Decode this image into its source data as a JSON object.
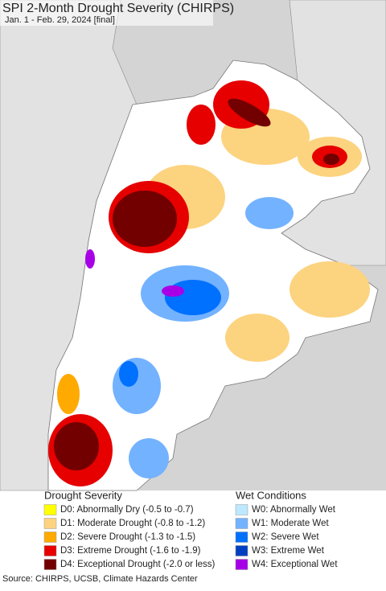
{
  "header": {
    "title": "SPI 2-Month Drought Severity (CHIRPS)",
    "subtitle": "Jan. 1 - Feb. 29, 2024 [final]"
  },
  "legend": {
    "drought": {
      "title": "Drought Severity",
      "items": [
        {
          "label": "D0: Abnormally Dry (-0.5 to -0.7)",
          "color": "#ffff00"
        },
        {
          "label": "D1: Moderate Drought (-0.8 to -1.2)",
          "color": "#fcd37f"
        },
        {
          "label": "D2: Severe Drought (-1.3 to -1.5)",
          "color": "#ffaa00"
        },
        {
          "label": "D3: Extreme Drought (-1.6 to -1.9)",
          "color": "#e60000"
        },
        {
          "label": "D4: Exceptional Drought (-2.0 or less)",
          "color": "#730000"
        }
      ]
    },
    "wet": {
      "title": "Wet Conditions",
      "items": [
        {
          "label": "W0: Abnormally Wet",
          "color": "#bde8ff"
        },
        {
          "label": "W1: Moderate Wet",
          "color": "#73b2ff"
        },
        {
          "label": "W2: Severe Wet",
          "color": "#0070ff"
        },
        {
          "label": "W3: Extreme Wet",
          "color": "#0040c0"
        },
        {
          "label": "W4: Exceptional Wet",
          "color": "#a800e6"
        }
      ]
    }
  },
  "source": "Source: CHIRPS, UCSB, Climate Hazards Center"
}
